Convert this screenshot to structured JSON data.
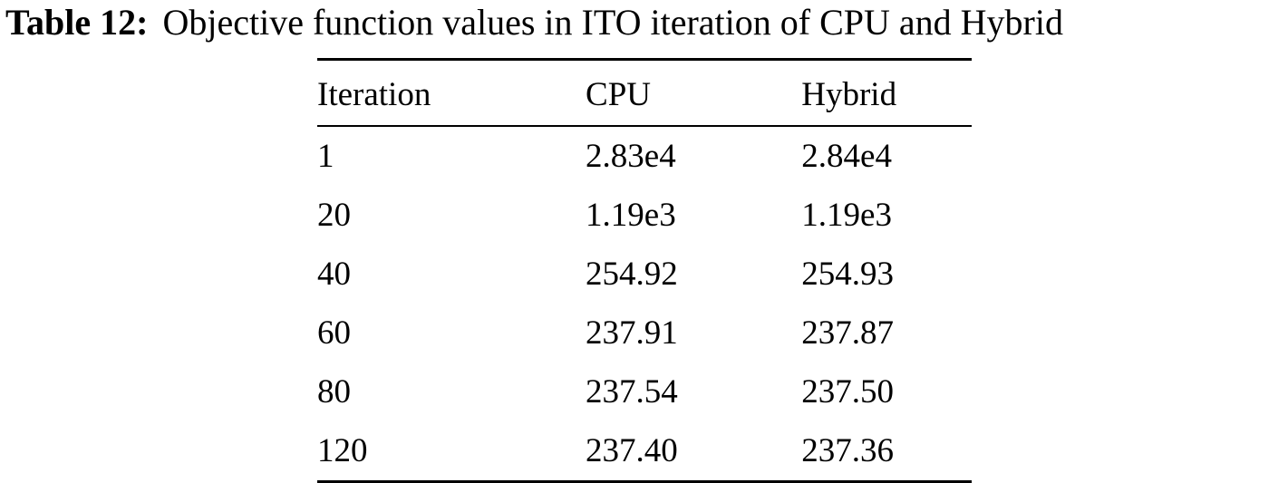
{
  "caption": {
    "label": "Table 12:",
    "text": "Objective function values in ITO iteration of CPU and Hybrid"
  },
  "table": {
    "headers": [
      "Iteration",
      "CPU",
      "Hybrid"
    ],
    "rows": [
      [
        "1",
        "2.83e4",
        "2.84e4"
      ],
      [
        "20",
        "1.19e3",
        "1.19e3"
      ],
      [
        "40",
        "254.92",
        "254.93"
      ],
      [
        "60",
        "237.91",
        "237.87"
      ],
      [
        "80",
        "237.54",
        "237.50"
      ],
      [
        "120",
        "237.40",
        "237.36"
      ]
    ]
  }
}
